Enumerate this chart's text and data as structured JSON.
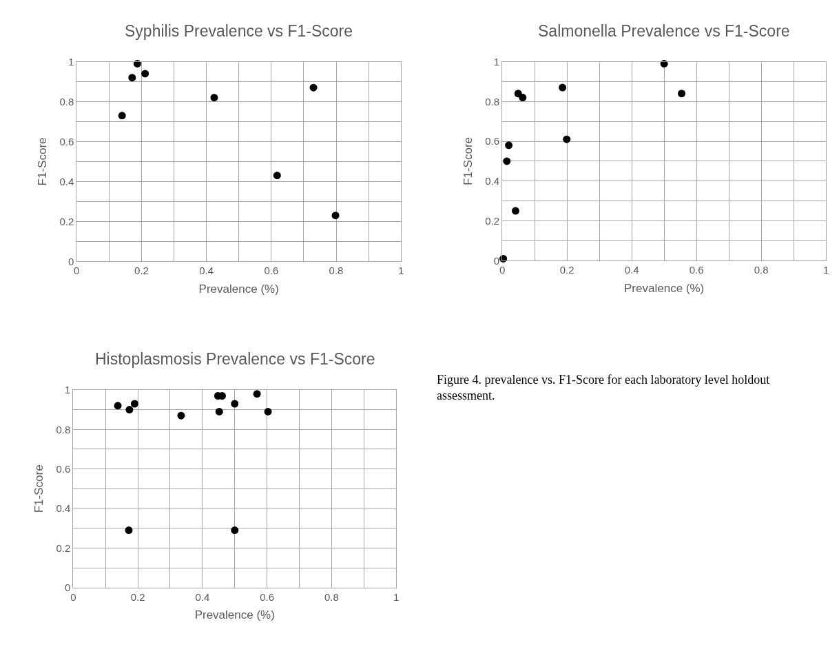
{
  "chart_data": [
    {
      "type": "scatter",
      "title": "Syphilis Prevalence vs F1-Score",
      "xlabel": "Prevalence (%)",
      "ylabel": "F1-Score",
      "marker": "circle",
      "grid": true,
      "xlim": [
        0,
        1
      ],
      "ylim": [
        0,
        1
      ],
      "xticks": [
        0,
        {
          "value": 0.1,
          "label": null
        },
        {
          "value": 0.2,
          "label": "0.2"
        },
        {
          "value": 0.3,
          "label": null
        },
        {
          "value": 0.4,
          "label": "0.4"
        },
        {
          "value": 0.5,
          "label": null
        },
        {
          "value": 0.6,
          "label": "0.6"
        },
        {
          "value": 0.7,
          "label": null
        },
        {
          "value": 0.8,
          "label": "0.8"
        },
        {
          "value": 0.9,
          "label": null
        },
        1
      ],
      "yticks": [
        0,
        {
          "value": 0.1,
          "label": null
        },
        {
          "value": 0.2,
          "label": "0.2"
        },
        {
          "value": 0.3,
          "label": null
        },
        {
          "value": 0.4,
          "label": "0.4"
        },
        {
          "value": 0.5,
          "label": null
        },
        {
          "value": 0.6,
          "label": "0.6"
        },
        {
          "value": 0.7,
          "label": null
        },
        {
          "value": 0.8,
          "label": "0.8"
        },
        {
          "value": 0.9,
          "label": null
        },
        1
      ],
      "series": [
        {
          "color": "#000000",
          "x": [
            0.187,
            0.171,
            0.211,
            0.14,
            0.424,
            0.73,
            0.618,
            0.798
          ],
          "values": [
            0.99,
            0.92,
            0.94,
            0.73,
            0.82,
            0.87,
            0.43,
            0.23
          ]
        }
      ]
    },
    {
      "type": "scatter",
      "title": "Salmonella Prevalence vs F1-Score",
      "xlabel": "Prevalence (%)",
      "ylabel": "F1-Score",
      "marker": "circle",
      "grid": true,
      "xlim": [
        0,
        1
      ],
      "ylim": [
        0,
        1
      ],
      "xticks": [
        0,
        {
          "value": 0.1,
          "label": null
        },
        {
          "value": 0.2,
          "label": "0.2"
        },
        {
          "value": 0.3,
          "label": null
        },
        {
          "value": 0.4,
          "label": "0.4"
        },
        {
          "value": 0.5,
          "label": null
        },
        {
          "value": 0.6,
          "label": "0.6"
        },
        {
          "value": 0.7,
          "label": null
        },
        {
          "value": 0.8,
          "label": "0.8"
        },
        {
          "value": 0.9,
          "label": null
        },
        1
      ],
      "yticks": [
        0,
        {
          "value": 0.1,
          "label": null
        },
        {
          "value": 0.2,
          "label": "0.2"
        },
        {
          "value": 0.3,
          "label": null
        },
        {
          "value": 0.4,
          "label": "0.4"
        },
        {
          "value": 0.5,
          "label": null
        },
        {
          "value": 0.6,
          "label": "0.6"
        },
        {
          "value": 0.7,
          "label": null
        },
        {
          "value": 0.8,
          "label": "0.8"
        },
        {
          "value": 0.9,
          "label": null
        },
        1
      ],
      "series": [
        {
          "color": "#000000",
          "x": [
            0.003,
            0.014,
            0.02,
            0.041,
            0.049,
            0.063,
            0.186,
            0.199,
            0.5,
            0.554
          ],
          "values": [
            0.01,
            0.5,
            0.58,
            0.25,
            0.84,
            0.82,
            0.87,
            0.61,
            0.99,
            0.84
          ]
        }
      ]
    },
    {
      "type": "scatter",
      "title": "Histoplasmosis Prevalence vs F1-Score",
      "xlabel": "Prevalence (%)",
      "ylabel": "F1-Score",
      "marker": "circle",
      "grid": true,
      "xlim": [
        0,
        1
      ],
      "ylim": [
        0,
        1
      ],
      "xticks": [
        0,
        {
          "value": 0.1,
          "label": null
        },
        {
          "value": 0.2,
          "label": "0.2"
        },
        {
          "value": 0.3,
          "label": null
        },
        {
          "value": 0.4,
          "label": "0.4"
        },
        {
          "value": 0.5,
          "label": null
        },
        {
          "value": 0.6,
          "label": "0.6"
        },
        {
          "value": 0.7,
          "label": null
        },
        {
          "value": 0.8,
          "label": "0.8"
        },
        {
          "value": 0.9,
          "label": null
        },
        1
      ],
      "yticks": [
        0,
        {
          "value": 0.1,
          "label": null
        },
        {
          "value": 0.2,
          "label": "0.2"
        },
        {
          "value": 0.3,
          "label": null
        },
        {
          "value": 0.4,
          "label": "0.4"
        },
        {
          "value": 0.5,
          "label": null
        },
        {
          "value": 0.6,
          "label": "0.6"
        },
        {
          "value": 0.7,
          "label": null
        },
        {
          "value": 0.8,
          "label": "0.8"
        },
        {
          "value": 0.9,
          "label": null
        },
        1
      ],
      "series": [
        {
          "color": "#000000",
          "x": [
            0.138,
            0.174,
            0.19,
            0.334,
            0.448,
            0.461,
            0.452,
            0.5,
            0.569,
            0.603,
            0.172,
            0.5
          ],
          "values": [
            0.92,
            0.9,
            0.93,
            0.87,
            0.97,
            0.97,
            0.89,
            0.93,
            0.98,
            0.89,
            0.29,
            0.29
          ]
        }
      ]
    },
    {
      "type": "other",
      "annotations": [
        "Figure 4. prevalence vs. F1-Score for each laboratory level holdout assessment."
      ]
    }
  ]
}
